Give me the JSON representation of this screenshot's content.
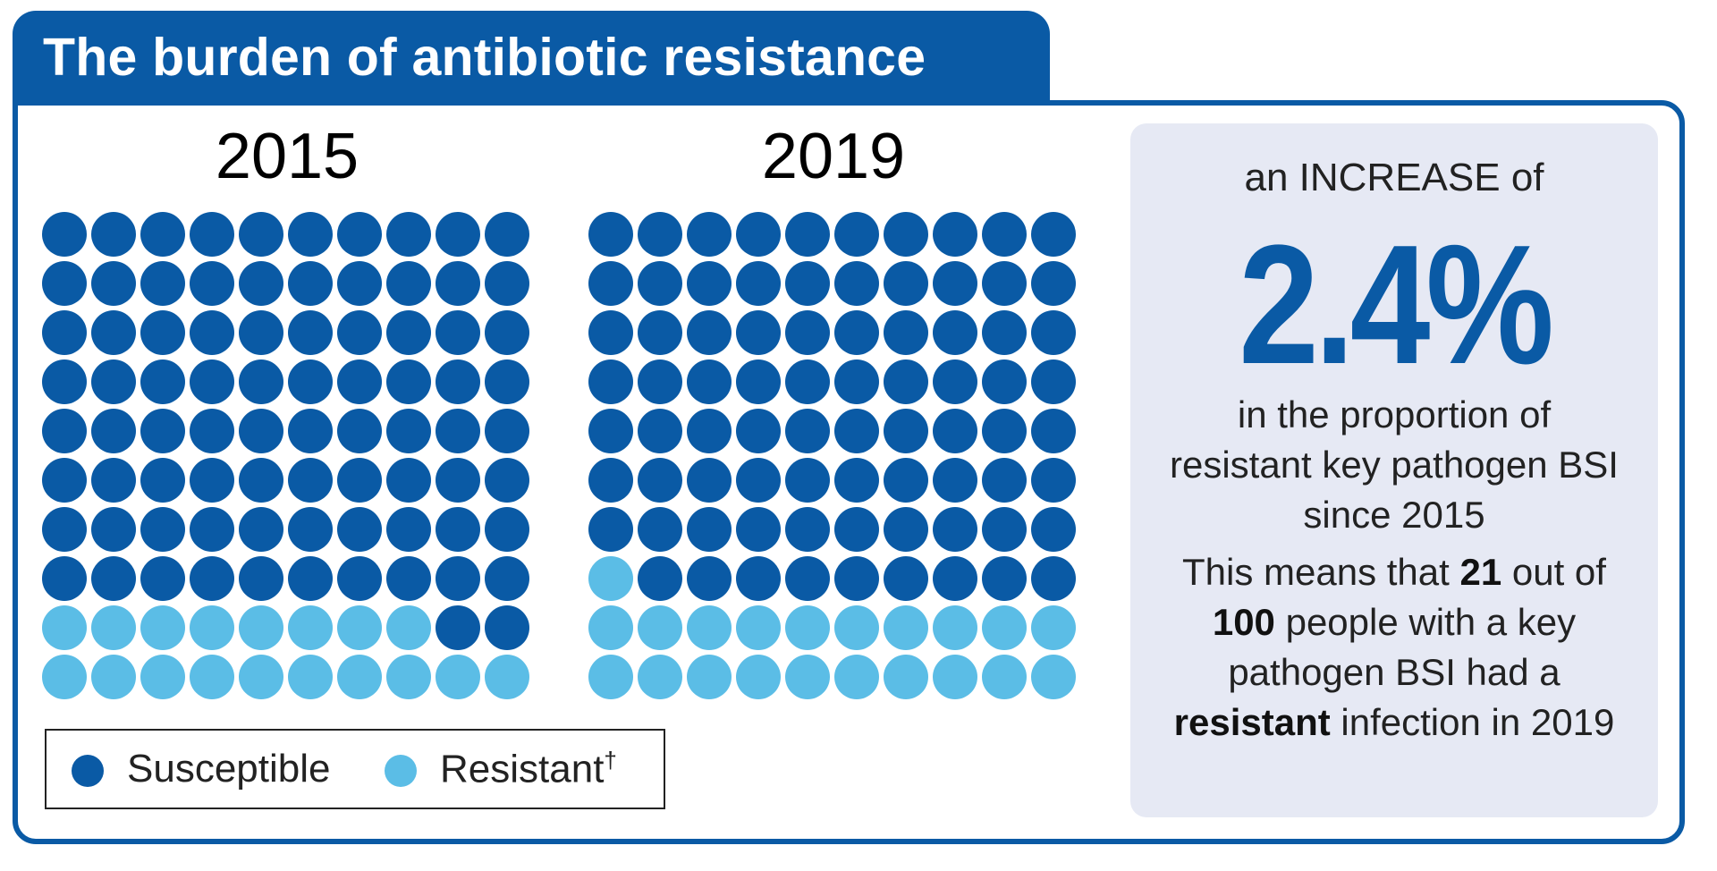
{
  "title": "The burden of antibiotic resistance",
  "colors": {
    "brand": "#0a5aa5",
    "susceptible": "#0a5aa5",
    "resistant": "#5bbde6",
    "panel_bg": "#e6e9f4"
  },
  "chart_data": [
    {
      "type": "waffle",
      "title": "2015",
      "total": 100,
      "columns": 10,
      "rows": 10,
      "fill_order": "resistant dots fill the bottom rows, left to right",
      "series": [
        {
          "name": "Susceptible",
          "value": 82
        },
        {
          "name": "Resistant",
          "value": 18
        }
      ]
    },
    {
      "type": "waffle",
      "title": "2019",
      "total": 100,
      "columns": 10,
      "rows": 10,
      "fill_order": "resistant dots fill the bottom rows, left to right",
      "series": [
        {
          "name": "Susceptible",
          "value": 79
        },
        {
          "name": "Resistant",
          "value": 21
        }
      ]
    }
  ],
  "legend": {
    "susceptible_label": "Susceptible",
    "resistant_label": "Resistant",
    "resistant_mark": "†"
  },
  "panel": {
    "increase_text": "an INCREASE of",
    "big_value": "2.4%",
    "para1_lines": [
      "in the proportion of",
      "resistant key pathogen BSI",
      "since 2015"
    ],
    "para2": {
      "l1_a": "This means that ",
      "l1_b": "21",
      "l1_c": " out of",
      "l2_a": "100",
      "l2_b": " people with a key",
      "l3": "pathogen BSI had a",
      "l4_a": "resistant",
      "l4_b": " infection in 2019"
    }
  }
}
